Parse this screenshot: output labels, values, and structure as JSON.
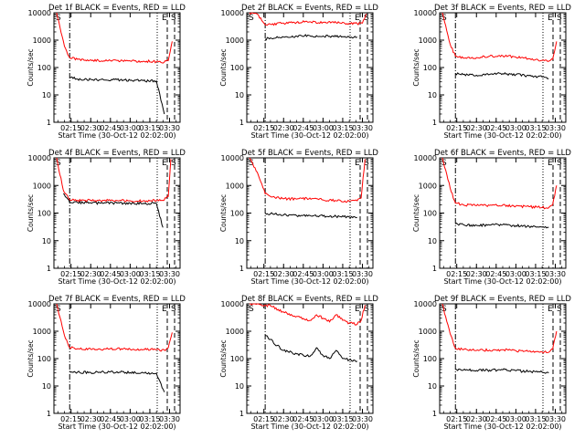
{
  "figure": {
    "ylabel": "Counts/sec",
    "xlabel": "Start Time (30-Oct-12 02:02:00)",
    "xticks": [
      "02:15",
      "02:30",
      "02:45",
      "03:00",
      "03:15",
      "03:30"
    ],
    "yticks": [
      "1",
      "10",
      "100",
      "1000",
      "10000"
    ],
    "corner_marks": {
      "s_left": "S",
      "e_right": "E",
      "s_right": "S"
    }
  },
  "colors": {
    "events": "#000000",
    "lld": "#ff0000",
    "background": "#ffffff",
    "axis": "#000000"
  },
  "chart_data": [
    {
      "type": "line",
      "title": "Det 1f BLACK = Events, RED = LLD",
      "y_scale": "log",
      "ylim": [
        1,
        10000
      ],
      "xlim": [
        "02:02",
        "03:38"
      ],
      "series": [
        {
          "name": "Events",
          "color": "#000000",
          "x": [
            "02:14",
            "02:20",
            "02:30",
            "02:40",
            "02:50",
            "03:00",
            "03:10",
            "03:20",
            "03:26"
          ],
          "values": [
            44,
            38,
            37,
            35,
            36,
            34,
            33,
            32,
            2
          ]
        },
        {
          "name": "LLD",
          "color": "#ff0000",
          "x": [
            "02:04",
            "02:10",
            "02:14",
            "02:20",
            "02:30",
            "02:40",
            "02:50",
            "03:00",
            "03:10",
            "03:20",
            "03:26",
            "03:29",
            "03:32"
          ],
          "values": [
            10000,
            600,
            230,
            200,
            190,
            175,
            180,
            175,
            170,
            165,
            160,
            180,
            900
          ]
        }
      ]
    },
    {
      "type": "line",
      "title": "Det 2f BLACK = Events, RED = LLD",
      "y_scale": "log",
      "ylim": [
        1,
        10000
      ],
      "xlim": [
        "02:02",
        "03:38"
      ],
      "series": [
        {
          "name": "Events",
          "color": "#000000",
          "x": [
            "02:16",
            "02:20",
            "02:30",
            "02:40",
            "02:50",
            "03:00",
            "03:10",
            "03:20",
            "03:26"
          ],
          "values": [
            1100,
            1200,
            1300,
            1400,
            1450,
            1400,
            1350,
            1300,
            1300
          ]
        },
        {
          "name": "LLD",
          "color": "#ff0000",
          "x": [
            "02:04",
            "02:10",
            "02:16",
            "02:20",
            "02:30",
            "02:40",
            "02:50",
            "03:00",
            "03:10",
            "03:20",
            "03:26",
            "03:30",
            "03:33"
          ],
          "values": [
            10000,
            9000,
            3600,
            3800,
            4200,
            4500,
            4700,
            4500,
            4300,
            4100,
            4000,
            4200,
            9000
          ]
        }
      ]
    },
    {
      "type": "line",
      "title": "Det 3f BLACK = Events, RED = LLD",
      "y_scale": "log",
      "ylim": [
        1,
        10000
      ],
      "xlim": [
        "02:02",
        "03:38"
      ],
      "series": [
        {
          "name": "Events",
          "color": "#000000",
          "x": [
            "02:14",
            "02:20",
            "02:30",
            "02:40",
            "02:50",
            "03:00",
            "03:10",
            "03:20",
            "03:25"
          ],
          "values": [
            60,
            55,
            52,
            56,
            60,
            55,
            50,
            45,
            40
          ]
        },
        {
          "name": "LLD",
          "color": "#ff0000",
          "x": [
            "02:04",
            "02:10",
            "02:14",
            "02:20",
            "02:30",
            "02:40",
            "02:50",
            "03:00",
            "03:10",
            "03:20",
            "03:25",
            "03:28",
            "03:31"
          ],
          "values": [
            10000,
            700,
            260,
            220,
            230,
            260,
            270,
            240,
            210,
            180,
            170,
            200,
            900
          ]
        }
      ]
    },
    {
      "type": "line",
      "title": "Det 4f BLACK = Events, RED = LLD",
      "y_scale": "log",
      "ylim": [
        1,
        10000
      ],
      "xlim": [
        "02:02",
        "03:38"
      ],
      "series": [
        {
          "name": "Events",
          "color": "#000000",
          "x": [
            "02:09",
            "02:14",
            "02:20",
            "02:30",
            "02:40",
            "02:50",
            "03:00",
            "03:10",
            "03:20",
            "03:25"
          ],
          "values": [
            500,
            240,
            240,
            235,
            230,
            230,
            225,
            225,
            220,
            30
          ]
        },
        {
          "name": "LLD",
          "color": "#ff0000",
          "x": [
            "02:04",
            "02:09",
            "02:14",
            "02:20",
            "02:30",
            "02:40",
            "02:50",
            "03:00",
            "03:10",
            "03:20",
            "03:25",
            "03:29",
            "03:31"
          ],
          "values": [
            10000,
            700,
            300,
            290,
            290,
            285,
            285,
            280,
            280,
            280,
            285,
            400,
            9000
          ]
        }
      ]
    },
    {
      "type": "line",
      "title": "Det 5f BLACK = Events, RED = LLD",
      "y_scale": "log",
      "ylim": [
        1,
        10000
      ],
      "xlim": [
        "02:02",
        "03:38"
      ],
      "series": [
        {
          "name": "Events",
          "color": "#000000",
          "x": [
            "02:16",
            "02:20",
            "02:30",
            "02:40",
            "02:50",
            "03:00",
            "03:10",
            "03:20",
            "03:26"
          ],
          "values": [
            100,
            95,
            85,
            80,
            82,
            78,
            75,
            72,
            70
          ]
        },
        {
          "name": "LLD",
          "color": "#ff0000",
          "x": [
            "02:04",
            "02:10",
            "02:16",
            "02:20",
            "02:30",
            "02:40",
            "02:50",
            "03:00",
            "03:10",
            "03:20",
            "03:26",
            "03:29",
            "03:32"
          ],
          "values": [
            10000,
            3000,
            500,
            400,
            330,
            320,
            350,
            300,
            280,
            270,
            280,
            350,
            9000
          ]
        }
      ]
    },
    {
      "type": "line",
      "title": "Det 6f BLACK = Events, RED = LLD",
      "y_scale": "log",
      "ylim": [
        1,
        10000
      ],
      "xlim": [
        "02:02",
        "03:38"
      ],
      "series": [
        {
          "name": "Events",
          "color": "#000000",
          "x": [
            "02:14",
            "02:20",
            "02:30",
            "02:40",
            "02:50",
            "03:00",
            "03:10",
            "03:20",
            "03:25"
          ],
          "values": [
            40,
            38,
            36,
            37,
            38,
            35,
            33,
            31,
            30
          ]
        },
        {
          "name": "LLD",
          "color": "#ff0000",
          "x": [
            "02:04",
            "02:10",
            "02:14",
            "02:20",
            "02:30",
            "02:40",
            "02:50",
            "03:00",
            "03:10",
            "03:20",
            "03:25",
            "03:28",
            "03:31"
          ],
          "values": [
            10000,
            800,
            230,
            200,
            185,
            190,
            195,
            180,
            170,
            160,
            155,
            200,
            1000
          ]
        }
      ]
    },
    {
      "type": "line",
      "title": "Det 7f BLACK = Events, RED = LLD",
      "y_scale": "log",
      "ylim": [
        1,
        10000
      ],
      "xlim": [
        "02:02",
        "03:38"
      ],
      "series": [
        {
          "name": "Events",
          "color": "#000000",
          "x": [
            "02:14",
            "02:20",
            "02:30",
            "02:40",
            "02:50",
            "03:00",
            "03:10",
            "03:20",
            "03:26"
          ],
          "values": [
            35,
            32,
            31,
            32,
            33,
            31,
            30,
            29,
            6
          ]
        },
        {
          "name": "LLD",
          "color": "#ff0000",
          "x": [
            "02:04",
            "02:10",
            "02:14",
            "02:20",
            "02:30",
            "02:40",
            "02:50",
            "03:00",
            "03:10",
            "03:20",
            "03:26",
            "03:29",
            "03:32"
          ],
          "values": [
            10000,
            700,
            250,
            230,
            220,
            225,
            230,
            220,
            215,
            210,
            205,
            250,
            900
          ]
        }
      ]
    },
    {
      "type": "line",
      "title": "Det 8f BLACK = Events, RED = LLD",
      "y_scale": "log",
      "ylim": [
        1,
        10000
      ],
      "xlim": [
        "02:02",
        "03:38"
      ],
      "series": [
        {
          "name": "Events",
          "color": "#000000",
          "x": [
            "02:16",
            "02:20",
            "02:25",
            "02:30",
            "02:40",
            "02:50",
            "02:55",
            "03:00",
            "03:05",
            "03:10",
            "03:15",
            "03:20",
            "03:26"
          ],
          "values": [
            700,
            500,
            300,
            200,
            150,
            120,
            250,
            130,
            100,
            200,
            100,
            90,
            80
          ]
        },
        {
          "name": "LLD",
          "color": "#ff0000",
          "x": [
            "02:04",
            "02:10",
            "02:16",
            "02:20",
            "02:30",
            "02:40",
            "02:50",
            "02:55",
            "03:00",
            "03:05",
            "03:10",
            "03:15",
            "03:20",
            "03:26",
            "03:29",
            "03:32"
          ],
          "values": [
            10000,
            10000,
            9000,
            8500,
            5000,
            3500,
            2500,
            4000,
            3000,
            2200,
            4000,
            2500,
            2000,
            1800,
            2500,
            9000
          ]
        }
      ]
    },
    {
      "type": "line",
      "title": "Det 9f BLACK = Events, RED = LLD",
      "y_scale": "log",
      "ylim": [
        1,
        10000
      ],
      "xlim": [
        "02:02",
        "03:38"
      ],
      "series": [
        {
          "name": "Events",
          "color": "#000000",
          "x": [
            "02:14",
            "02:20",
            "02:30",
            "02:40",
            "02:50",
            "03:00",
            "03:10",
            "03:20",
            "03:25"
          ],
          "values": [
            40,
            38,
            37,
            38,
            39,
            36,
            34,
            32,
            30
          ]
        },
        {
          "name": "LLD",
          "color": "#ff0000",
          "x": [
            "02:04",
            "02:10",
            "02:14",
            "02:20",
            "02:30",
            "02:40",
            "02:50",
            "03:00",
            "03:10",
            "03:20",
            "03:25",
            "03:28",
            "03:31"
          ],
          "values": [
            10000,
            800,
            240,
            210,
            200,
            205,
            210,
            195,
            185,
            175,
            170,
            220,
            1000
          ]
        }
      ]
    }
  ]
}
